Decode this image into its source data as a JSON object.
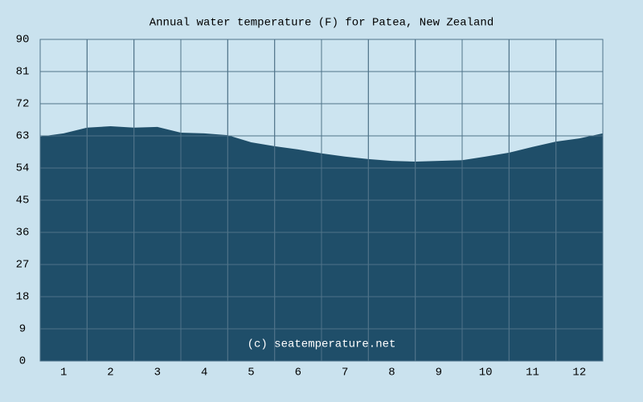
{
  "chart_data": {
    "type": "area",
    "title": "Annual water temperature (F) for Patea, New Zealand",
    "annotation": "(c) seatemperature.net",
    "x": [
      0.5,
      1,
      1.5,
      2,
      2.5,
      3,
      3.5,
      4,
      4.5,
      5,
      5.5,
      6,
      6.5,
      7,
      7.5,
      8,
      8.5,
      9,
      9.5,
      10,
      10.5,
      11,
      11.5,
      12,
      12.5
    ],
    "series": [
      {
        "color": "#1f4e69",
        "values": [
          62.8,
          63.7,
          65.3,
          65.7,
          65.3,
          65.5,
          63.9,
          63.7,
          63.2,
          61.2,
          60.1,
          59.2,
          58.1,
          57.2,
          56.5,
          56.0,
          55.8,
          56.0,
          56.2,
          57.2,
          58.3,
          59.9,
          61.4,
          62.3,
          63.7
        ]
      }
    ],
    "xlim": [
      0.5,
      12.5
    ],
    "xticks": [
      1,
      2,
      3,
      4,
      5,
      6,
      7,
      8,
      9,
      10,
      11,
      12
    ],
    "ylim": [
      0,
      90
    ],
    "yticks": [
      0,
      9,
      18,
      27,
      36,
      45,
      54,
      63,
      72,
      81,
      90
    ],
    "grid": true
  }
}
